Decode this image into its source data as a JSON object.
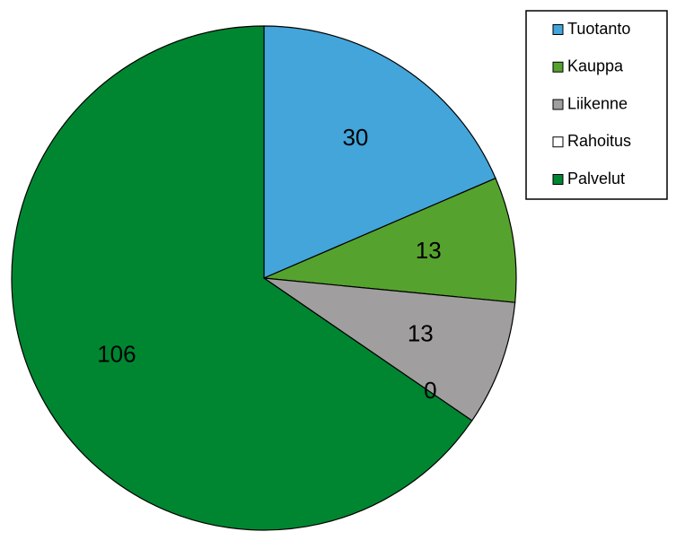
{
  "chart_data": {
    "type": "pie",
    "categories": [
      "Tuotanto",
      "Kauppa",
      "Liikenne",
      "Rahoitus",
      "Palvelut"
    ],
    "values": [
      30,
      13,
      13,
      0,
      106
    ],
    "colors": [
      "#43a5d9",
      "#56a22e",
      "#a09e9e",
      "#ffffff",
      "#008631"
    ],
    "legend": "top-right"
  }
}
